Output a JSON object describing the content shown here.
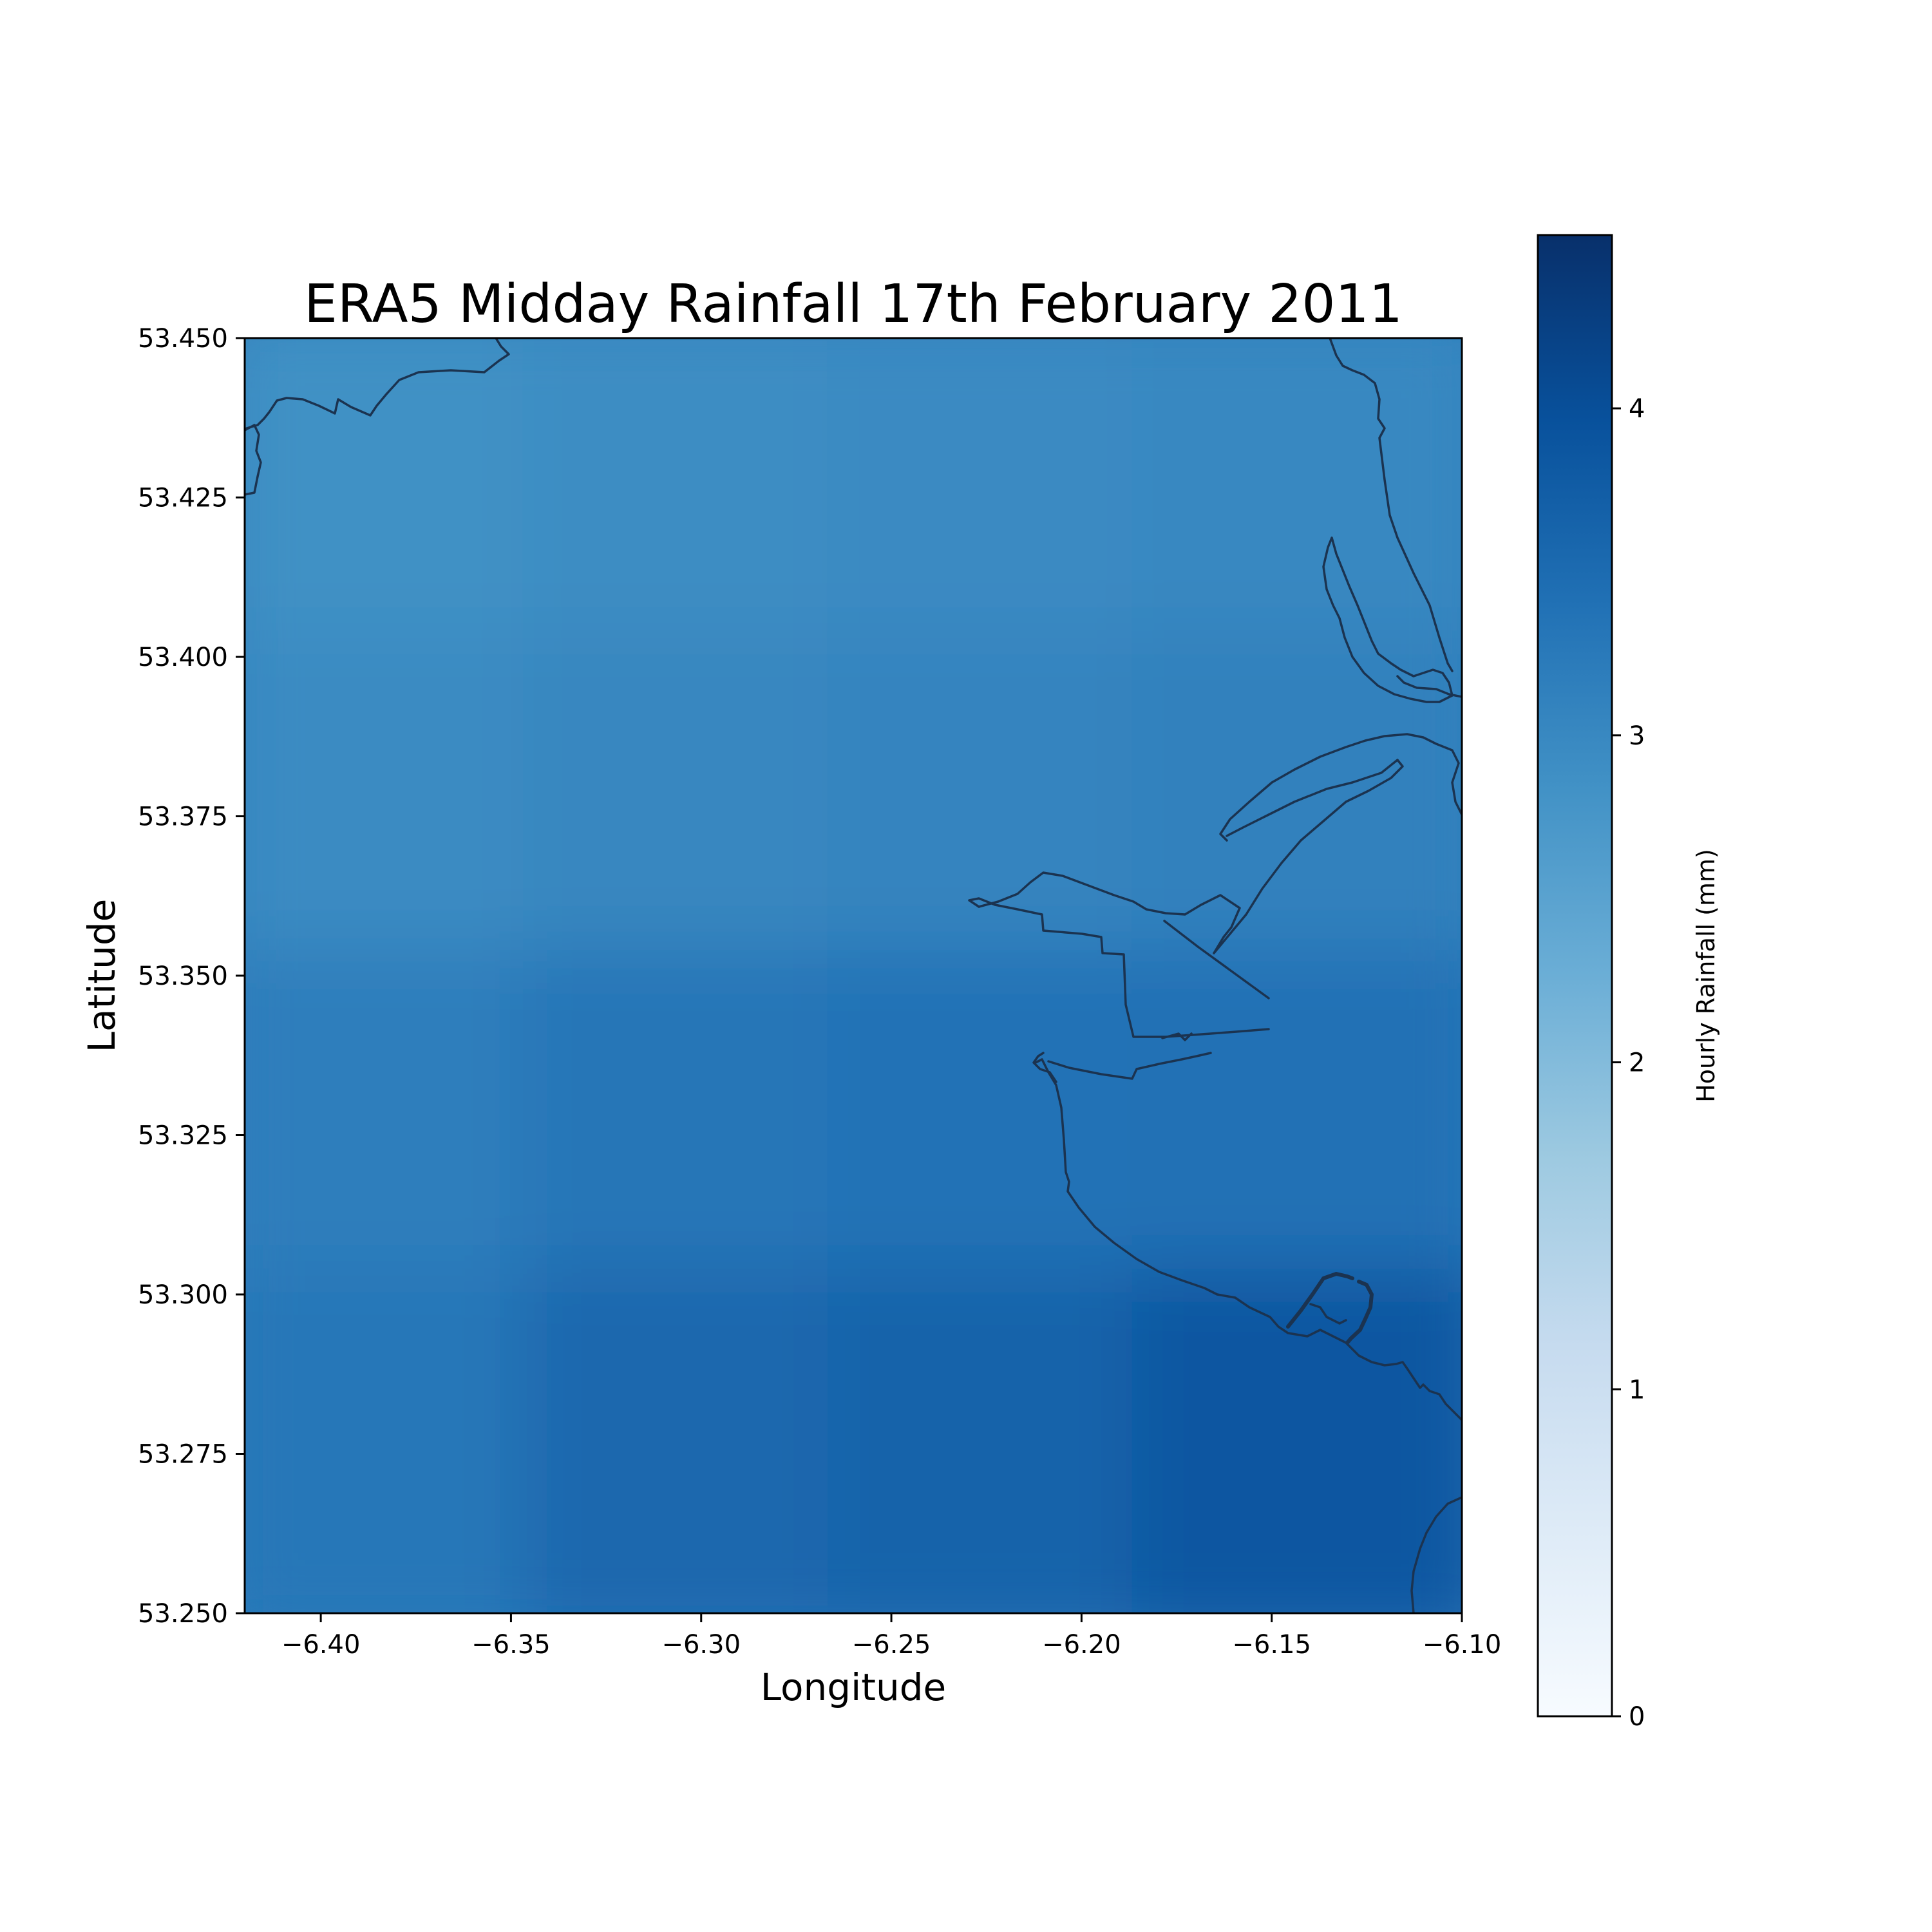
{
  "chart_data": {
    "type": "heatmap",
    "title": "ERA5 Midday Rainfall 17th February 2011",
    "xlabel": "Longitude",
    "ylabel": "Latitude",
    "xlim": [
      -6.42,
      -6.1
    ],
    "ylim": [
      53.25,
      53.45
    ],
    "x_ticks": [
      {
        "value": -6.4,
        "label": "−6.40"
      },
      {
        "value": -6.35,
        "label": "−6.35"
      },
      {
        "value": -6.3,
        "label": "−6.30"
      },
      {
        "value": -6.25,
        "label": "−6.25"
      },
      {
        "value": -6.2,
        "label": "−6.20"
      },
      {
        "value": -6.15,
        "label": "−6.15"
      },
      {
        "value": -6.1,
        "label": "−6.10"
      }
    ],
    "y_ticks": [
      {
        "value": 53.25,
        "label": "53.250"
      },
      {
        "value": 53.275,
        "label": "53.275"
      },
      {
        "value": 53.3,
        "label": "53.300"
      },
      {
        "value": 53.325,
        "label": "53.325"
      },
      {
        "value": 53.35,
        "label": "53.350"
      },
      {
        "value": 53.375,
        "label": "53.375"
      },
      {
        "value": 53.4,
        "label": "53.400"
      },
      {
        "value": 53.425,
        "label": "53.425"
      },
      {
        "value": 53.45,
        "label": "53.450"
      }
    ],
    "colorbar": {
      "label": "Hourly Rainfall (mm)",
      "range": [
        0,
        4.53
      ],
      "colormap": "Blues",
      "ticks": [
        {
          "value": 0,
          "label": "0"
        },
        {
          "value": 1,
          "label": "1"
        },
        {
          "value": 2,
          "label": "2"
        },
        {
          "value": 3,
          "label": "3"
        },
        {
          "value": 4,
          "label": "4"
        }
      ],
      "stops": [
        "#f7fbff",
        "#deebf7",
        "#c6dbef",
        "#9ecae1",
        "#6baed6",
        "#4292c6",
        "#2171b5",
        "#08519c",
        "#08306b"
      ]
    },
    "grid": false,
    "field": {
      "description_rows_from_top": true,
      "lat_edges": [
        53.45,
        53.4,
        53.35,
        53.3,
        53.25
      ],
      "lon_edges": [
        -6.42,
        -6.34,
        -6.26,
        -6.18,
        -6.1
      ],
      "values": [
        [
          2.85,
          2.92,
          2.97,
          3.0
        ],
        [
          2.95,
          3.02,
          3.07,
          3.12
        ],
        [
          3.18,
          3.32,
          3.38,
          3.4
        ],
        [
          3.3,
          3.55,
          3.65,
          3.85
        ]
      ]
    },
    "coastline_color": "#1b3350"
  }
}
